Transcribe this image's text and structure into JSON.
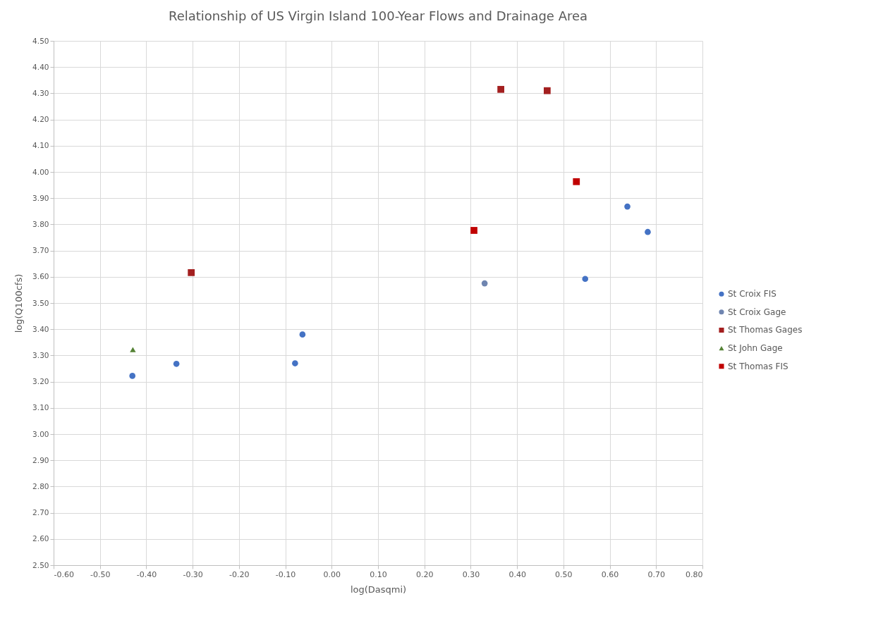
{
  "chart_data": {
    "type": "scatter",
    "title": "Relationship of US Virgin Island 100-Year Flows and Drainage Area",
    "xlabel": "log(Dasqmi)",
    "ylabel": "log(Q100cfs)",
    "xlim": [
      -0.6,
      0.8
    ],
    "xticks": [
      {
        "value": -0.6,
        "label": "-0.60"
      },
      {
        "value": -0.5,
        "label": "-0.50"
      },
      {
        "value": -0.4,
        "label": "-0.40"
      },
      {
        "value": -0.3,
        "label": "-0.30"
      },
      {
        "value": -0.2,
        "label": "-0.20"
      },
      {
        "value": -0.1,
        "label": "-0.10"
      },
      {
        "value": 0,
        "label": "0.00"
      },
      {
        "value": 0.1,
        "label": "0.10"
      },
      {
        "value": 0.2,
        "label": "0.20"
      },
      {
        "value": 0.3,
        "label": "0.30"
      },
      {
        "value": 0.4,
        "label": "0.40"
      },
      {
        "value": 0.5,
        "label": "0.50"
      },
      {
        "value": 0.6,
        "label": "0.60"
      },
      {
        "value": 0.7,
        "label": "0.70"
      },
      {
        "value": 0.8,
        "label": "0.80"
      }
    ],
    "ylim": [
      2.5,
      4.5
    ],
    "yticks": [
      {
        "value": 2.5,
        "label": "2.50"
      },
      {
        "value": 2.6,
        "label": "2.60"
      },
      {
        "value": 2.7,
        "label": "2.70"
      },
      {
        "value": 2.8,
        "label": "2.80"
      },
      {
        "value": 2.9,
        "label": "2.90"
      },
      {
        "value": 3,
        "label": "3.00"
      },
      {
        "value": 3.1,
        "label": "3.10"
      },
      {
        "value": 3.2,
        "label": "3.20"
      },
      {
        "value": 3.3,
        "label": "3.30"
      },
      {
        "value": 3.4,
        "label": "3.40"
      },
      {
        "value": 3.5,
        "label": "3.50"
      },
      {
        "value": 3.6,
        "label": "3.60"
      },
      {
        "value": 3.7,
        "label": "3.70"
      },
      {
        "value": 3.8,
        "label": "3.80"
      },
      {
        "value": 3.9,
        "label": "3.90"
      },
      {
        "value": 4,
        "label": "4.00"
      },
      {
        "value": 4.1,
        "label": "4.10"
      },
      {
        "value": 4.2,
        "label": "4.20"
      },
      {
        "value": 4.3,
        "label": "4.30"
      },
      {
        "value": 4.4,
        "label": "4.40"
      },
      {
        "value": 4.5,
        "label": "4.50"
      }
    ],
    "grid": true,
    "legend": "right",
    "series": [
      {
        "name": "St Croix FIS",
        "color": "#4472c4",
        "marker": "circle",
        "x": [
          -0.43,
          -0.335,
          -0.079,
          -0.063,
          0.547,
          0.638,
          0.682
        ],
        "values": [
          3.222,
          3.268,
          3.27,
          3.38,
          3.592,
          3.868,
          3.771
        ]
      },
      {
        "name": "St Croix Gage",
        "color": "#6f85b0",
        "marker": "circle",
        "x": [
          0.33
        ],
        "values": [
          3.575
        ]
      },
      {
        "name": "St Thomas Gages",
        "color": "#a31f1f",
        "marker": "square",
        "x": [
          -0.303,
          0.365,
          0.465
        ],
        "values": [
          3.616,
          4.315,
          4.31
        ]
      },
      {
        "name": "St John Gage",
        "color": "#548235",
        "marker": "triangle",
        "x": [
          -0.429
        ],
        "values": [
          3.322
        ]
      },
      {
        "name": "St Thomas FIS",
        "color": "#c00000",
        "marker": "square",
        "x": [
          0.307,
          0.528
        ],
        "values": [
          3.777,
          3.963
        ]
      }
    ]
  }
}
